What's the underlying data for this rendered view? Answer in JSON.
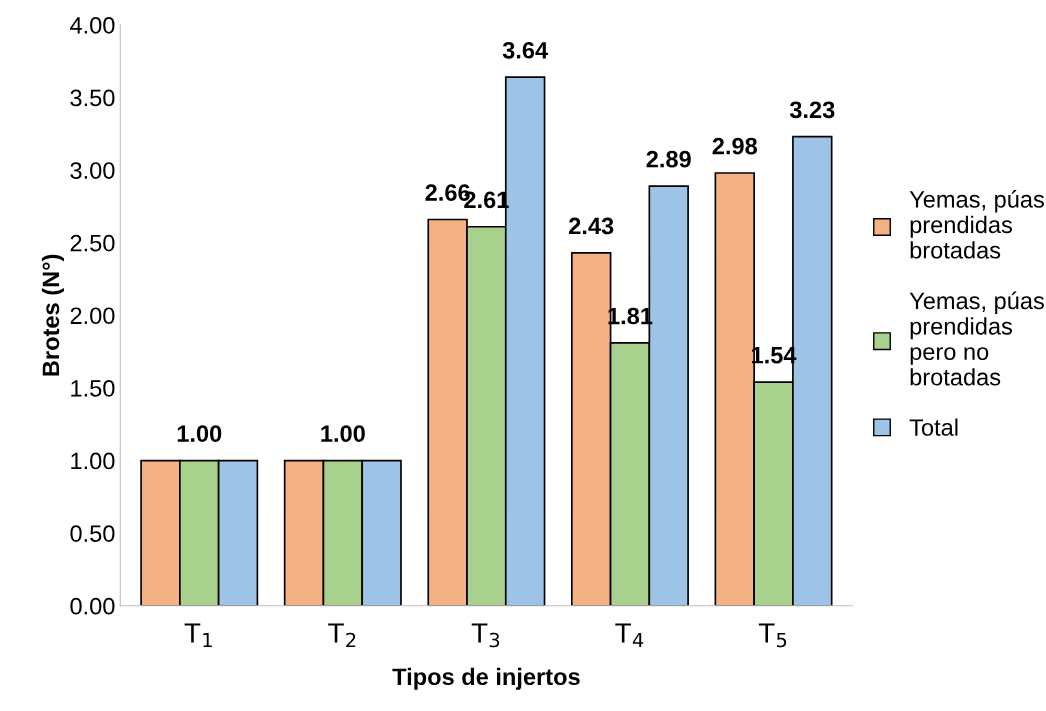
{
  "chart_data": {
    "type": "bar",
    "xlabel": "Tipos de injertos",
    "ylabel": "Brotes (N°)",
    "categories": [
      "T$_{1}$",
      "T$_{2}$",
      "T$_{3}$",
      "T$_{4}$",
      "T$_{5}$"
    ],
    "series": [
      {
        "name": "Yemas, púas\nprendidas\nbrotadas",
        "color": "#f4b183",
        "values": [
          1.0,
          1.0,
          2.66,
          2.43,
          2.98
        ],
        "value_labels": [
          null,
          null,
          "2.66",
          "2.43",
          "2.98"
        ]
      },
      {
        "name": "Yemas, púas\nprendidas\npero no\nbrotadas",
        "color": "#a9d18e",
        "values": [
          1.0,
          1.0,
          2.61,
          1.81,
          1.54
        ],
        "value_labels": [
          "1.00",
          "1.00",
          "2.61",
          "1.81",
          "1.54"
        ]
      },
      {
        "name": "Total",
        "color": "#9dc3e6",
        "values": [
          1.0,
          1.0,
          3.64,
          2.89,
          3.23
        ],
        "value_labels": [
          null,
          null,
          "3.64",
          "2.89",
          "3.23"
        ]
      }
    ],
    "ylim": [
      0,
      4
    ],
    "yticks": [
      {
        "value": 0,
        "label": "0.00"
      },
      {
        "value": 0.5,
        "label": "0.50"
      },
      {
        "value": 1,
        "label": "1.00"
      },
      {
        "value": 1.5,
        "label": "1.50"
      },
      {
        "value": 2,
        "label": "2.00"
      },
      {
        "value": 2.5,
        "label": "2.50"
      },
      {
        "value": 3,
        "label": "3.00"
      },
      {
        "value": 3.5,
        "label": "3.50"
      },
      {
        "value": 4,
        "label": "4.00"
      }
    ],
    "grid": false,
    "legend": "right"
  }
}
